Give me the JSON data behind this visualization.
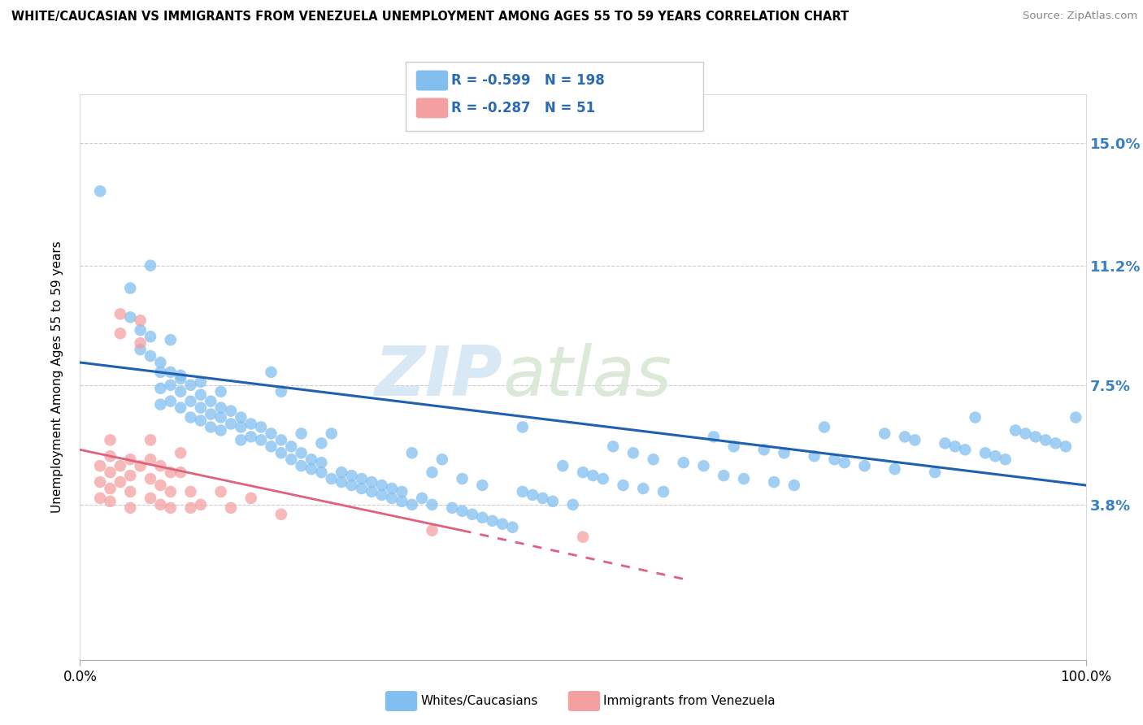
{
  "title": "WHITE/CAUCASIAN VS IMMIGRANTS FROM VENEZUELA UNEMPLOYMENT AMONG AGES 55 TO 59 YEARS CORRELATION CHART",
  "source": "Source: ZipAtlas.com",
  "ylabel": "Unemployment Among Ages 55 to 59 years",
  "ytick_labels": [
    "3.8%",
    "7.5%",
    "11.2%",
    "15.0%"
  ],
  "ytick_values": [
    0.038,
    0.075,
    0.112,
    0.15
  ],
  "xlim": [
    0.0,
    1.0
  ],
  "ylim": [
    -0.01,
    0.165
  ],
  "blue_color": "#82bfef",
  "pink_color": "#f4a0a0",
  "blue_line_color": "#2060b0",
  "pink_line_color": "#e06080",
  "blue_R": -0.599,
  "blue_N": 198,
  "pink_R": -0.287,
  "pink_N": 51,
  "legend_label_blue": "Whites/Caucasians",
  "legend_label_pink": "Immigrants from Venezuela",
  "watermark_ZIP": "ZIP",
  "watermark_atlas": "atlas",
  "blue_trend_x0": 0.0,
  "blue_trend_x1": 1.0,
  "blue_trend_y0": 0.082,
  "blue_trend_y1": 0.044,
  "pink_trend_x0": 0.0,
  "pink_trend_x1": 0.38,
  "pink_trend_solid_end": 0.38,
  "pink_trend_y0": 0.055,
  "pink_trend_y1_solid": 0.03,
  "pink_trend_x_dash_end": 0.6,
  "pink_trend_y_dash_end": 0.015,
  "blue_scatter_x": [
    0.02,
    0.05,
    0.05,
    0.06,
    0.06,
    0.07,
    0.07,
    0.07,
    0.08,
    0.08,
    0.08,
    0.08,
    0.09,
    0.09,
    0.09,
    0.09,
    0.1,
    0.1,
    0.1,
    0.1,
    0.11,
    0.11,
    0.11,
    0.12,
    0.12,
    0.12,
    0.12,
    0.13,
    0.13,
    0.13,
    0.14,
    0.14,
    0.14,
    0.14,
    0.15,
    0.15,
    0.16,
    0.16,
    0.16,
    0.17,
    0.17,
    0.18,
    0.18,
    0.19,
    0.19,
    0.19,
    0.2,
    0.2,
    0.2,
    0.21,
    0.21,
    0.22,
    0.22,
    0.22,
    0.23,
    0.23,
    0.24,
    0.24,
    0.24,
    0.25,
    0.25,
    0.26,
    0.26,
    0.27,
    0.27,
    0.28,
    0.28,
    0.29,
    0.29,
    0.3,
    0.3,
    0.31,
    0.31,
    0.32,
    0.32,
    0.33,
    0.33,
    0.34,
    0.35,
    0.35,
    0.36,
    0.37,
    0.38,
    0.38,
    0.39,
    0.4,
    0.4,
    0.41,
    0.42,
    0.43,
    0.44,
    0.44,
    0.45,
    0.46,
    0.47,
    0.48,
    0.49,
    0.5,
    0.51,
    0.52,
    0.53,
    0.54,
    0.55,
    0.56,
    0.57,
    0.58,
    0.6,
    0.62,
    0.63,
    0.64,
    0.65,
    0.66,
    0.68,
    0.69,
    0.7,
    0.71,
    0.73,
    0.74,
    0.75,
    0.76,
    0.78,
    0.8,
    0.81,
    0.82,
    0.83,
    0.85,
    0.86,
    0.87,
    0.88,
    0.89,
    0.9,
    0.91,
    0.92,
    0.93,
    0.94,
    0.95,
    0.96,
    0.97,
    0.98,
    0.99
  ],
  "blue_scatter_y": [
    0.135,
    0.105,
    0.096,
    0.092,
    0.086,
    0.09,
    0.084,
    0.112,
    0.082,
    0.079,
    0.074,
    0.069,
    0.079,
    0.075,
    0.07,
    0.089,
    0.077,
    0.073,
    0.068,
    0.078,
    0.075,
    0.07,
    0.065,
    0.072,
    0.068,
    0.064,
    0.076,
    0.07,
    0.066,
    0.062,
    0.068,
    0.065,
    0.061,
    0.073,
    0.067,
    0.063,
    0.065,
    0.062,
    0.058,
    0.063,
    0.059,
    0.062,
    0.058,
    0.06,
    0.056,
    0.079,
    0.058,
    0.073,
    0.054,
    0.056,
    0.052,
    0.054,
    0.05,
    0.06,
    0.052,
    0.049,
    0.051,
    0.048,
    0.057,
    0.06,
    0.046,
    0.048,
    0.045,
    0.047,
    0.044,
    0.046,
    0.043,
    0.045,
    0.042,
    0.044,
    0.041,
    0.043,
    0.04,
    0.042,
    0.039,
    0.054,
    0.038,
    0.04,
    0.048,
    0.038,
    0.052,
    0.037,
    0.046,
    0.036,
    0.035,
    0.034,
    0.044,
    0.033,
    0.032,
    0.031,
    0.042,
    0.062,
    0.041,
    0.04,
    0.039,
    0.05,
    0.038,
    0.048,
    0.047,
    0.046,
    0.056,
    0.044,
    0.054,
    0.043,
    0.052,
    0.042,
    0.051,
    0.05,
    0.059,
    0.047,
    0.056,
    0.046,
    0.055,
    0.045,
    0.054,
    0.044,
    0.053,
    0.062,
    0.052,
    0.051,
    0.05,
    0.06,
    0.049,
    0.059,
    0.058,
    0.048,
    0.057,
    0.056,
    0.055,
    0.065,
    0.054,
    0.053,
    0.052,
    0.061,
    0.06,
    0.059,
    0.058,
    0.057,
    0.056,
    0.065
  ],
  "pink_scatter_x": [
    0.02,
    0.02,
    0.02,
    0.03,
    0.03,
    0.03,
    0.03,
    0.03,
    0.04,
    0.04,
    0.04,
    0.04,
    0.05,
    0.05,
    0.05,
    0.05,
    0.06,
    0.06,
    0.06,
    0.07,
    0.07,
    0.07,
    0.07,
    0.08,
    0.08,
    0.08,
    0.09,
    0.09,
    0.09,
    0.1,
    0.1,
    0.11,
    0.11,
    0.12,
    0.14,
    0.15,
    0.17,
    0.2,
    0.35,
    0.5
  ],
  "pink_scatter_y": [
    0.05,
    0.045,
    0.04,
    0.058,
    0.053,
    0.048,
    0.043,
    0.039,
    0.097,
    0.091,
    0.05,
    0.045,
    0.052,
    0.047,
    0.042,
    0.037,
    0.095,
    0.088,
    0.05,
    0.058,
    0.052,
    0.046,
    0.04,
    0.05,
    0.044,
    0.038,
    0.048,
    0.042,
    0.037,
    0.054,
    0.048,
    0.042,
    0.037,
    0.038,
    0.042,
    0.037,
    0.04,
    0.035,
    0.03,
    0.028
  ]
}
